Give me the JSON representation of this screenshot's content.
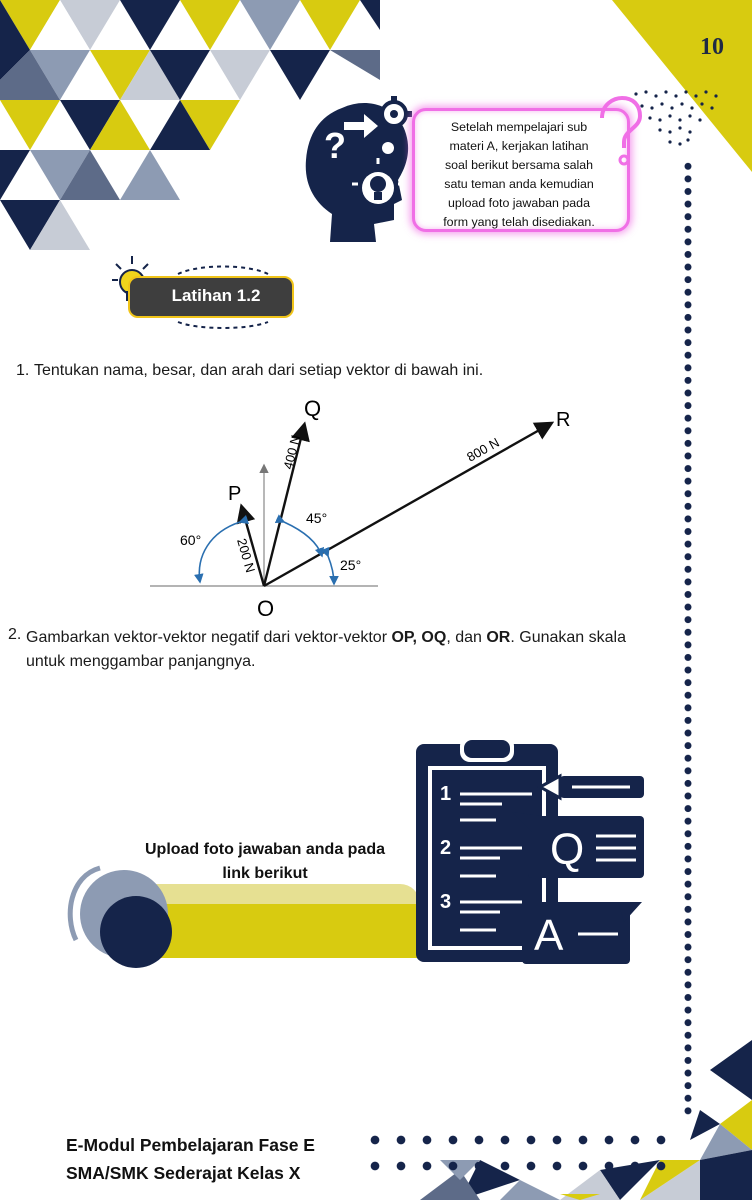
{
  "page_number": "10",
  "callout": {
    "lines": [
      "Setelah mempelajari sub",
      "materi A, kerjakan latihan",
      "soal berikut bersama salah",
      "satu teman anda kemudian",
      "upload foto jawaban pada",
      "form yang telah disediakan."
    ]
  },
  "section_title": "Latihan 1.2",
  "questions": [
    {
      "number": "1.",
      "text": "Tentukan nama, besar, dan arah dari setiap vektor di bawah ini."
    },
    {
      "number": "2.",
      "text_before": "Gambarkan vektor-vektor negatif dari vektor-vektor ",
      "bold1": "OP, OQ",
      "text_mid": ", dan ",
      "bold2": "OR",
      "text_after": ". Gunakan skala untuk menggambar panjangnya."
    }
  ],
  "diagram": {
    "origin": "O",
    "vectors": [
      {
        "name": "P",
        "magnitude": "200 N",
        "angle": "60°"
      },
      {
        "name": "Q",
        "magnitude": "400 N",
        "angle": "45°"
      },
      {
        "name": "R",
        "magnitude": "800 N",
        "angle": "25°"
      }
    ]
  },
  "upload": {
    "text_line1": "Upload foto jawaban anda pada",
    "text_line2": "link berikut"
  },
  "clipboard": {
    "numbers": [
      "1",
      "2",
      "3"
    ],
    "letters": [
      "Q",
      "A"
    ]
  },
  "footer": {
    "line1": "E-Modul Pembelajaran Fase E",
    "line2": "SMA/SMK Sederajat Kelas X"
  },
  "colors": {
    "navy": "#15244a",
    "yellow": "#d8cb10",
    "pink": "#f06fe6",
    "slate": "#8d9bb3"
  }
}
